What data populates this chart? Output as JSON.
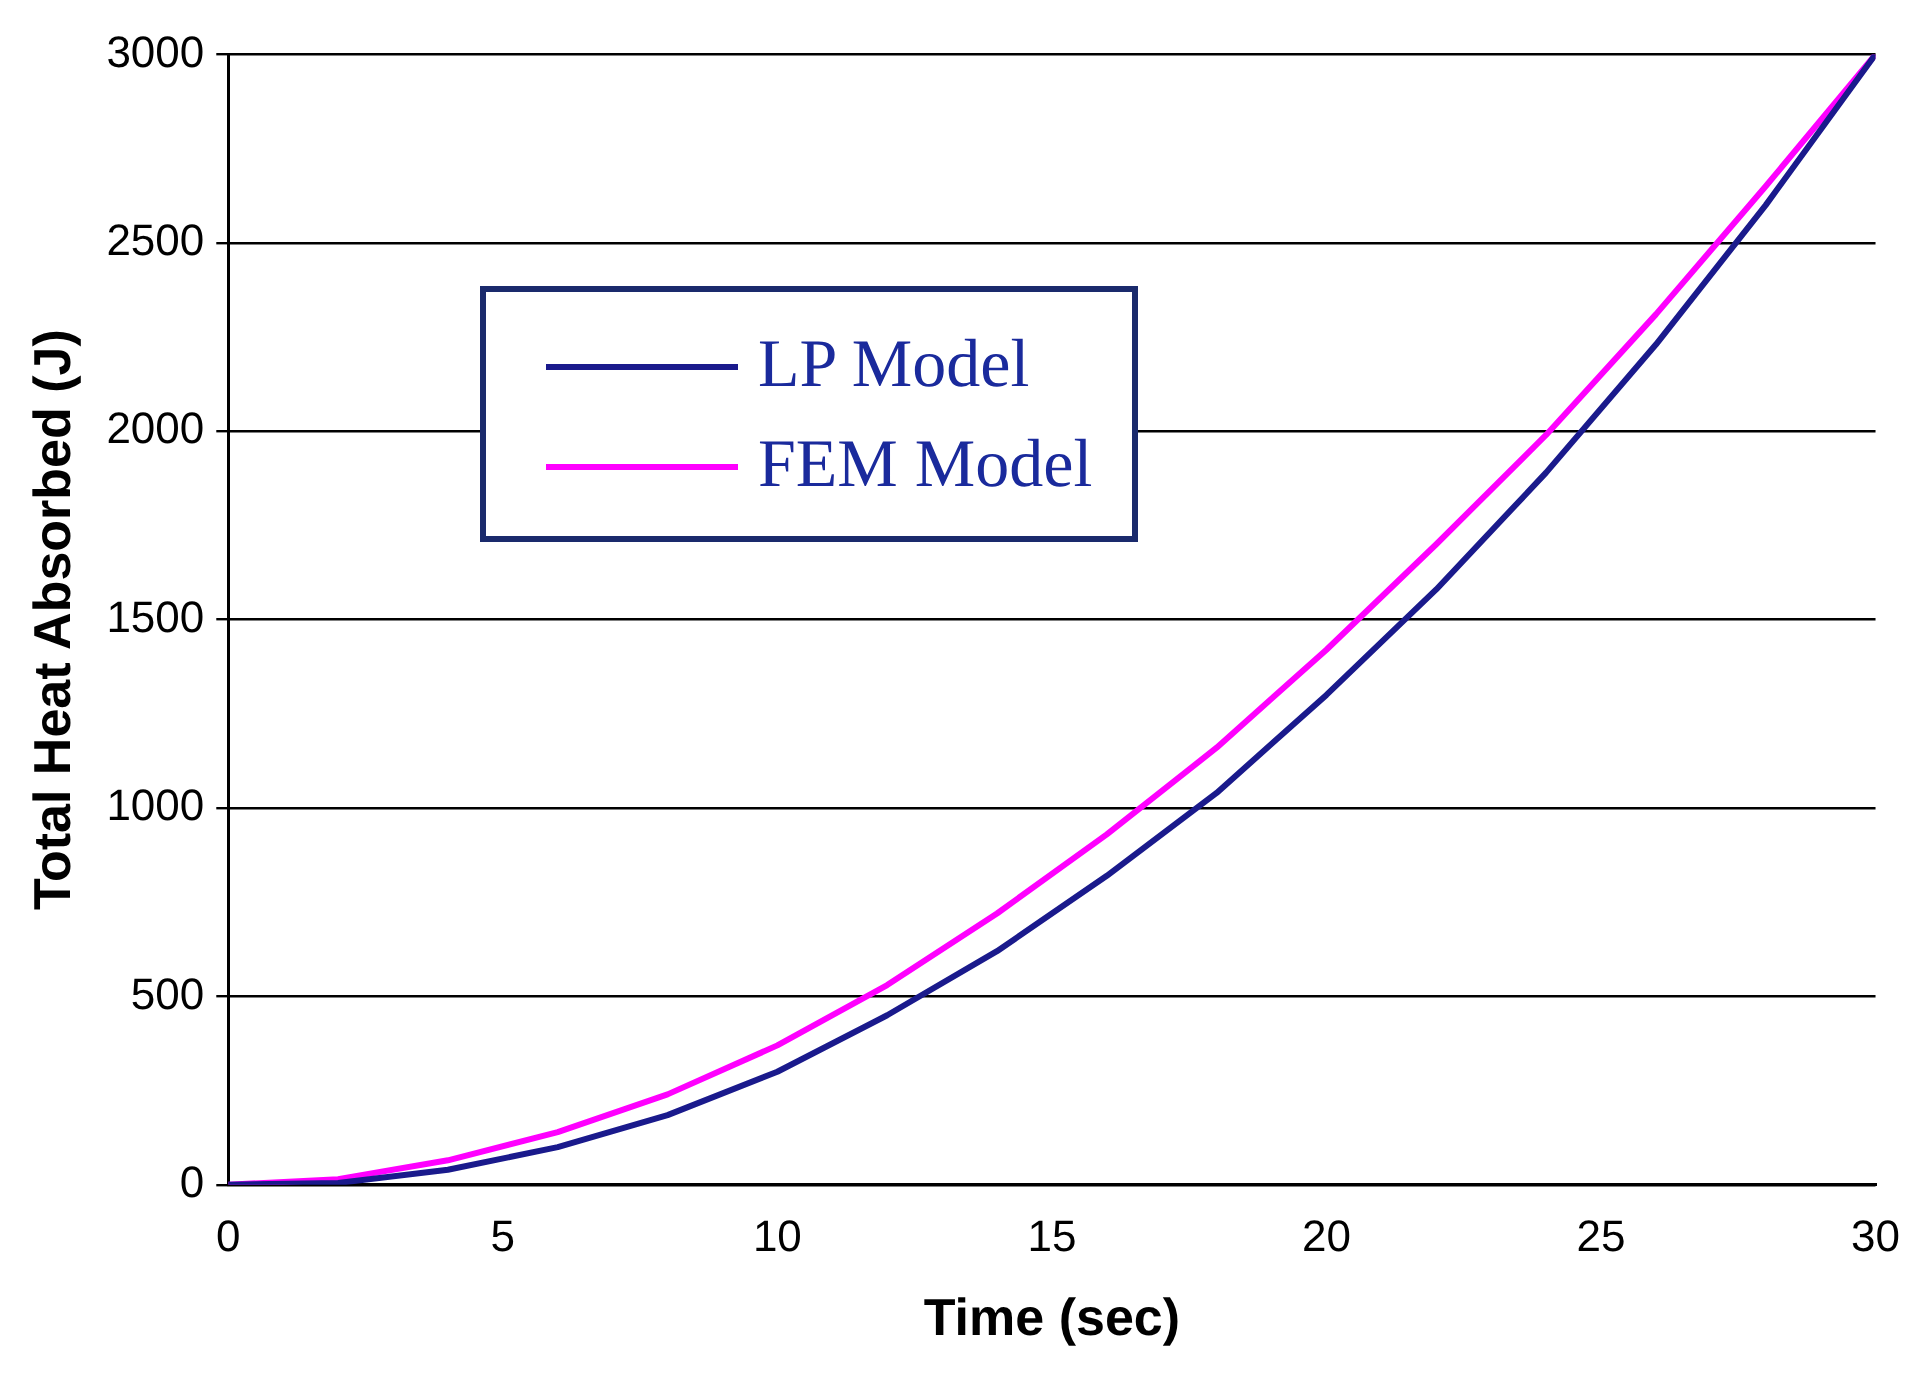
{
  "chart_data": {
    "type": "line",
    "xlabel": "Time (sec)",
    "ylabel": "Total Heat Absorbed (J)",
    "xlim": [
      0,
      30
    ],
    "xticks": [
      0,
      5,
      10,
      15,
      20,
      25,
      30
    ],
    "ylim": [
      0,
      3000
    ],
    "yticks": [
      0,
      500,
      1000,
      1500,
      2000,
      2500,
      3000
    ],
    "grid": "y",
    "legend": "top left",
    "marker": "none",
    "line_style": "solid",
    "x": [
      0,
      2,
      4,
      6,
      8,
      10,
      12,
      14,
      16,
      18,
      20,
      22,
      24,
      26,
      28,
      30
    ],
    "series": [
      {
        "name": "LP Model",
        "color": "#1a1a8c",
        "values": [
          0,
          5,
          40,
          100,
          185,
          300,
          450,
          620,
          820,
          1040,
          1300,
          1580,
          1890,
          2230,
          2600,
          3000
        ]
      },
      {
        "name": "FEM Model",
        "color": "#ff00ff",
        "values": [
          0,
          15,
          65,
          140,
          240,
          370,
          530,
          720,
          930,
          1160,
          1420,
          1700,
          1990,
          2310,
          2650,
          3000
        ]
      }
    ]
  }
}
